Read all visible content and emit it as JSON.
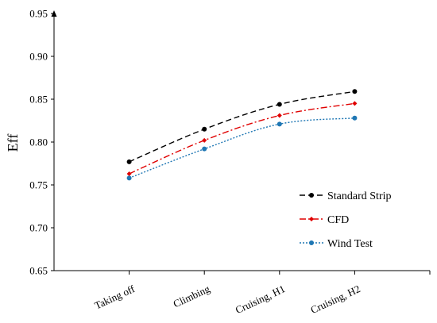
{
  "chart_data": {
    "type": "line",
    "title": "",
    "xlabel": "",
    "ylabel": "Eff",
    "ylim": [
      0.65,
      0.95
    ],
    "yticks": [
      "0.65",
      "0.70",
      "0.75",
      "0.80",
      "0.85",
      "0.90",
      "0.95"
    ],
    "categories": [
      "Taking off",
      "Climbing",
      "Cruising, H1",
      "Cruising, H2"
    ],
    "grid": false,
    "legend_position": "bottom-right",
    "series": [
      {
        "name": "Standard Strip",
        "values": [
          0.777,
          0.815,
          0.844,
          0.859
        ],
        "color": "#000000",
        "dash": "dashed",
        "marker": "circle"
      },
      {
        "name": "CFD",
        "values": [
          0.763,
          0.802,
          0.831,
          0.845
        ],
        "color": "#e00000",
        "dash": "dash-dot",
        "marker": "diamond"
      },
      {
        "name": "Wind Test",
        "values": [
          0.758,
          0.792,
          0.821,
          0.828
        ],
        "color": "#1f77b4",
        "dash": "dotted",
        "marker": "circle"
      }
    ]
  }
}
